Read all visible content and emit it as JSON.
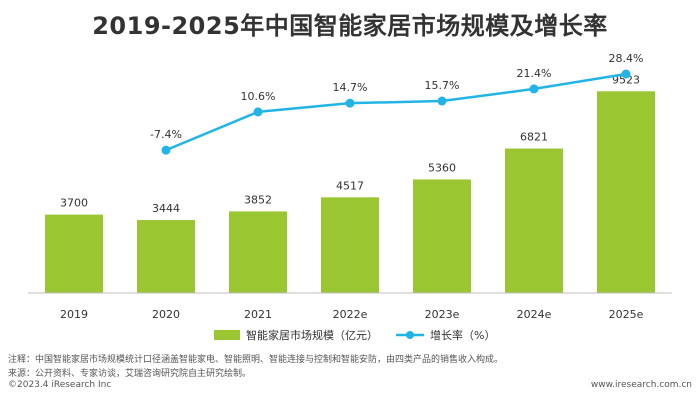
{
  "chart_data": {
    "type": "bar+line",
    "title": "2019-2025年中国智能家居市场规模及增长率",
    "categories": [
      "2019",
      "2020",
      "2021",
      "2022e",
      "2023e",
      "2024e",
      "2025e"
    ],
    "series": [
      {
        "name": "智能家居市场规模（亿元）",
        "type": "bar",
        "values": [
          3700,
          3444,
          3852,
          4517,
          5360,
          6821,
          9523
        ],
        "color": "#9ac631"
      },
      {
        "name": "增长率（%）",
        "type": "line",
        "values": [
          null,
          -7.4,
          10.6,
          14.7,
          15.7,
          21.4,
          28.4
        ],
        "labels": [
          "",
          "-7.4%",
          "10.6%",
          "14.7%",
          "15.7%",
          "21.4%",
          "28.4%"
        ],
        "color": "#22b4e6"
      }
    ],
    "bar_ylim": [
      0,
      11000
    ],
    "line_ylim": [
      -60,
      35
    ],
    "legend_position": "bottom-center",
    "grid": false
  },
  "notes": {
    "note": "注释：中国智能家居市场规模统计口径涵盖智能家电、智能照明、智能连接与控制和智能安防，由四类产品的销售收入构成。",
    "source": "来源：公开资料、专家访谈，艾瑞咨询研究院自主研究绘制。"
  },
  "footer": {
    "copyright": "©2023.4 iResearch Inc",
    "website": "www.iresearch.com.cn"
  }
}
